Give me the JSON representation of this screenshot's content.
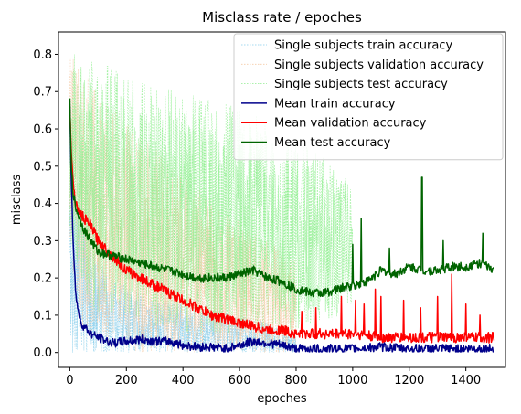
{
  "chart_data": {
    "type": "line",
    "title": "Misclass rate / epoches",
    "xlabel": "epoches",
    "ylabel": "misclass",
    "xlim": [
      -40,
      1540
    ],
    "ylim": [
      -0.04,
      0.86
    ],
    "xticks": [
      0,
      200,
      400,
      600,
      800,
      1000,
      1200,
      1400
    ],
    "yticks": [
      0.0,
      0.1,
      0.2,
      0.3,
      0.4,
      0.5,
      0.6,
      0.7,
      0.8
    ],
    "grid": false,
    "legend_position": "top-right",
    "series": [
      {
        "name": "Single subjects train accuracy",
        "style": "dotted-band",
        "color": "#87ceeb",
        "x": [
          0,
          20,
          50,
          100,
          150,
          200,
          300,
          400,
          500,
          600,
          700,
          800
        ],
        "low": [
          0.0,
          0.0,
          0.0,
          0.0,
          0.0,
          0.0,
          0.0,
          0.0,
          0.0,
          0.0,
          0.0,
          0.0
        ],
        "high": [
          0.7,
          0.5,
          0.35,
          0.25,
          0.2,
          0.18,
          0.15,
          0.13,
          0.12,
          0.1,
          0.08,
          0.05
        ]
      },
      {
        "name": "Single subjects validation accuracy",
        "style": "dotted-band",
        "color": "#f5cba7",
        "x": [
          0,
          20,
          50,
          100,
          200,
          300,
          400,
          500,
          600,
          700,
          800
        ],
        "low": [
          0.3,
          0.15,
          0.05,
          0.02,
          0.0,
          0.0,
          0.0,
          0.0,
          0.0,
          0.0,
          0.0
        ],
        "high": [
          0.8,
          0.78,
          0.75,
          0.7,
          0.62,
          0.55,
          0.48,
          0.42,
          0.35,
          0.3,
          0.25
        ]
      },
      {
        "name": "Single subjects test accuracy",
        "style": "dotted-band",
        "color": "#90ee90",
        "x": [
          0,
          50,
          100,
          200,
          300,
          400,
          500,
          600,
          700,
          800,
          900,
          1000
        ],
        "low": [
          0.3,
          0.15,
          0.1,
          0.08,
          0.06,
          0.05,
          0.05,
          0.05,
          0.05,
          0.06,
          0.08,
          0.1
        ],
        "high": [
          0.82,
          0.8,
          0.78,
          0.75,
          0.72,
          0.7,
          0.68,
          0.66,
          0.62,
          0.58,
          0.52,
          0.45
        ]
      },
      {
        "name": "Mean train accuracy",
        "style": "line",
        "color": "#00008b",
        "x": [
          0,
          5,
          10,
          15,
          20,
          30,
          40,
          50,
          75,
          100,
          150,
          200,
          250,
          300,
          350,
          400,
          450,
          500,
          550,
          600,
          650,
          700,
          750,
          800,
          900,
          1000,
          1100,
          1200,
          1300,
          1400,
          1500
        ],
        "y": [
          0.67,
          0.48,
          0.34,
          0.24,
          0.17,
          0.11,
          0.08,
          0.07,
          0.05,
          0.04,
          0.025,
          0.03,
          0.035,
          0.03,
          0.03,
          0.02,
          0.015,
          0.015,
          0.01,
          0.02,
          0.03,
          0.025,
          0.02,
          0.01,
          0.01,
          0.01,
          0.015,
          0.01,
          0.01,
          0.01,
          0.01
        ],
        "noise": 0.012
      },
      {
        "name": "Mean validation accuracy",
        "style": "line",
        "color": "#ff0000",
        "x": [
          0,
          5,
          10,
          20,
          30,
          50,
          75,
          100,
          150,
          200,
          250,
          300,
          350,
          400,
          450,
          500,
          550,
          600,
          650,
          700,
          750,
          800,
          850,
          900,
          1000,
          1100,
          1200,
          1300,
          1400,
          1500
        ],
        "y": [
          0.65,
          0.55,
          0.47,
          0.4,
          0.38,
          0.36,
          0.34,
          0.3,
          0.26,
          0.22,
          0.2,
          0.18,
          0.16,
          0.14,
          0.12,
          0.1,
          0.09,
          0.08,
          0.07,
          0.06,
          0.06,
          0.05,
          0.05,
          0.05,
          0.05,
          0.04,
          0.04,
          0.04,
          0.04,
          0.04
        ],
        "noise": 0.014,
        "spikes": [
          [
            820,
            0.11
          ],
          [
            870,
            0.12
          ],
          [
            960,
            0.15
          ],
          [
            1010,
            0.14
          ],
          [
            1040,
            0.13
          ],
          [
            1080,
            0.17
          ],
          [
            1100,
            0.15
          ],
          [
            1180,
            0.14
          ],
          [
            1240,
            0.12
          ],
          [
            1300,
            0.15
          ],
          [
            1350,
            0.21
          ],
          [
            1400,
            0.13
          ],
          [
            1450,
            0.1
          ]
        ]
      },
      {
        "name": "Mean test accuracy",
        "style": "line",
        "color": "#006400",
        "x": [
          0,
          5,
          10,
          20,
          30,
          50,
          75,
          100,
          150,
          200,
          250,
          300,
          350,
          400,
          450,
          500,
          550,
          600,
          650,
          700,
          750,
          800,
          850,
          900,
          950,
          1000,
          1050,
          1100,
          1150,
          1200,
          1250,
          1300,
          1350,
          1400,
          1450,
          1500
        ],
        "y": [
          0.67,
          0.5,
          0.44,
          0.39,
          0.37,
          0.33,
          0.3,
          0.27,
          0.26,
          0.25,
          0.24,
          0.23,
          0.22,
          0.21,
          0.2,
          0.2,
          0.2,
          0.21,
          0.22,
          0.2,
          0.19,
          0.17,
          0.16,
          0.16,
          0.17,
          0.18,
          0.19,
          0.22,
          0.21,
          0.23,
          0.22,
          0.22,
          0.23,
          0.23,
          0.24,
          0.22
        ],
        "noise": 0.012,
        "spikes": [
          [
            1000,
            0.29
          ],
          [
            1030,
            0.36
          ],
          [
            1130,
            0.28
          ],
          [
            1245,
            0.47
          ],
          [
            1320,
            0.3
          ],
          [
            1460,
            0.32
          ]
        ]
      }
    ]
  }
}
